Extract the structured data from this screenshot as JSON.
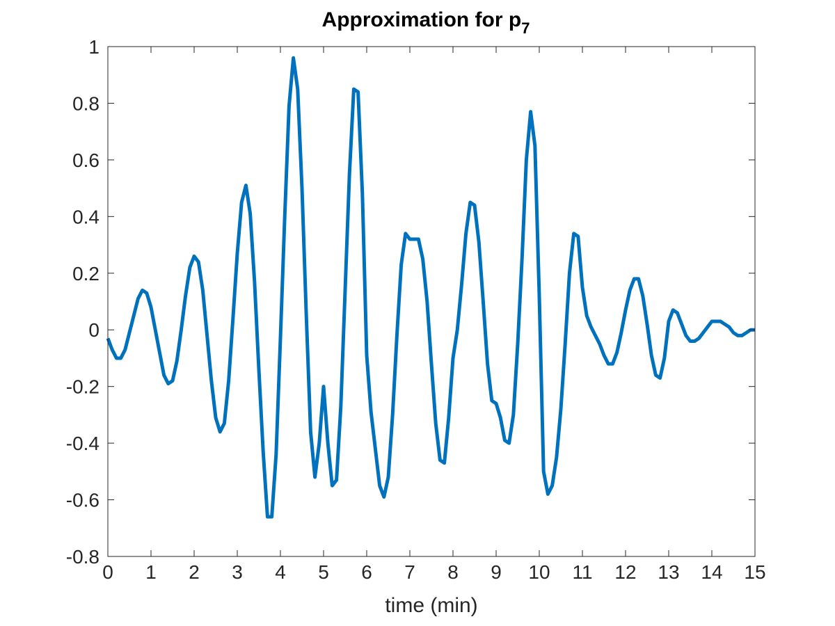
{
  "chart_data": {
    "type": "line",
    "title": "Approximation for p",
    "title_subscript": "7",
    "xlabel": "time (min)",
    "ylabel": "",
    "xlim": [
      0,
      15
    ],
    "ylim": [
      -0.8,
      1
    ],
    "xticks": [
      0,
      1,
      2,
      3,
      4,
      5,
      6,
      7,
      8,
      9,
      10,
      11,
      12,
      13,
      14,
      15
    ],
    "yticks": [
      -0.8,
      -0.6,
      -0.4,
      -0.2,
      0,
      0.2,
      0.4,
      0.6,
      0.8,
      1
    ],
    "xtick_labels": [
      "0",
      "1",
      "2",
      "3",
      "4",
      "5",
      "6",
      "7",
      "8",
      "9",
      "10",
      "11",
      "12",
      "13",
      "14",
      "15"
    ],
    "ytick_labels": [
      "-0.8",
      "-0.6",
      "-0.4",
      "-0.2",
      "0",
      "0.2",
      "0.4",
      "0.6",
      "0.8",
      "1"
    ],
    "grid": false,
    "box": true,
    "series": [
      {
        "color": "#0072BD",
        "x": [
          0,
          0.1,
          0.2,
          0.3,
          0.4,
          0.5,
          0.6,
          0.7,
          0.8,
          0.9,
          1.0,
          1.1,
          1.2,
          1.3,
          1.4,
          1.5,
          1.6,
          1.7,
          1.8,
          1.9,
          2.0,
          2.1,
          2.2,
          2.3,
          2.4,
          2.5,
          2.6,
          2.7,
          2.8,
          2.9,
          3.0,
          3.1,
          3.2,
          3.3,
          3.4,
          3.5,
          3.6,
          3.7,
          3.8,
          3.9,
          4.0,
          4.1,
          4.2,
          4.3,
          4.4,
          4.5,
          4.6,
          4.7,
          4.8,
          4.9,
          5.0,
          5.1,
          5.2,
          5.3,
          5.4,
          5.5,
          5.6,
          5.7,
          5.8,
          5.9,
          6.0,
          6.1,
          6.2,
          6.3,
          6.4,
          6.5,
          6.6,
          6.7,
          6.8,
          6.9,
          7.0,
          7.1,
          7.2,
          7.3,
          7.4,
          7.5,
          7.6,
          7.7,
          7.8,
          7.9,
          8.0,
          8.1,
          8.2,
          8.3,
          8.4,
          8.5,
          8.6,
          8.7,
          8.8,
          8.9,
          9.0,
          9.1,
          9.2,
          9.3,
          9.4,
          9.5,
          9.6,
          9.7,
          9.8,
          9.9,
          10.0,
          10.1,
          10.2,
          10.3,
          10.4,
          10.5,
          10.6,
          10.7,
          10.8,
          10.9,
          11.0,
          11.1,
          11.2,
          11.3,
          11.4,
          11.5,
          11.6,
          11.7,
          11.8,
          11.9,
          12.0,
          12.1,
          12.2,
          12.3,
          12.4,
          12.5,
          12.6,
          12.7,
          12.8,
          12.9,
          13.0,
          13.1,
          13.2,
          13.3,
          13.4,
          13.5,
          13.6,
          13.7,
          13.8,
          13.9,
          14.0,
          14.1,
          14.2,
          14.3,
          14.4,
          14.5,
          14.6,
          14.7,
          14.8,
          14.9,
          15.0
        ],
        "y": [
          -0.03,
          -0.07,
          -0.1,
          -0.1,
          -0.07,
          -0.01,
          0.05,
          0.11,
          0.14,
          0.13,
          0.08,
          0.0,
          -0.08,
          -0.16,
          -0.19,
          -0.18,
          -0.11,
          0.0,
          0.12,
          0.22,
          0.26,
          0.24,
          0.14,
          -0.02,
          -0.18,
          -0.31,
          -0.36,
          -0.33,
          -0.18,
          0.04,
          0.27,
          0.45,
          0.51,
          0.41,
          0.17,
          -0.14,
          -0.43,
          -0.66,
          -0.66,
          -0.44,
          -0.03,
          0.4,
          0.79,
          0.96,
          0.85,
          0.5,
          0.05,
          -0.36,
          -0.52,
          -0.4,
          -0.2,
          -0.4,
          -0.55,
          -0.53,
          -0.27,
          0.14,
          0.55,
          0.85,
          0.84,
          0.48,
          -0.09,
          -0.29,
          -0.42,
          -0.55,
          -0.59,
          -0.52,
          -0.3,
          -0.02,
          0.23,
          0.34,
          0.32,
          0.32,
          0.32,
          0.25,
          0.1,
          -0.12,
          -0.33,
          -0.46,
          -0.47,
          -0.31,
          -0.1,
          0.0,
          0.16,
          0.34,
          0.45,
          0.44,
          0.31,
          0.1,
          -0.12,
          -0.25,
          -0.26,
          -0.31,
          -0.39,
          -0.4,
          -0.3,
          -0.05,
          0.25,
          0.6,
          0.77,
          0.65,
          0.12,
          -0.5,
          -0.58,
          -0.55,
          -0.45,
          -0.28,
          -0.05,
          0.2,
          0.34,
          0.33,
          0.15,
          0.05,
          0.01,
          -0.02,
          -0.05,
          -0.09,
          -0.12,
          -0.12,
          -0.08,
          -0.01,
          0.07,
          0.14,
          0.18,
          0.18,
          0.12,
          0.02,
          -0.09,
          -0.16,
          -0.17,
          -0.1,
          0.03,
          0.07,
          0.06,
          0.02,
          -0.02,
          -0.04,
          -0.04,
          -0.03,
          -0.01,
          0.01,
          0.03,
          0.03,
          0.03,
          0.02,
          0.01,
          -0.01,
          -0.02,
          -0.02,
          -0.01,
          0.0,
          0.0
        ]
      }
    ]
  }
}
